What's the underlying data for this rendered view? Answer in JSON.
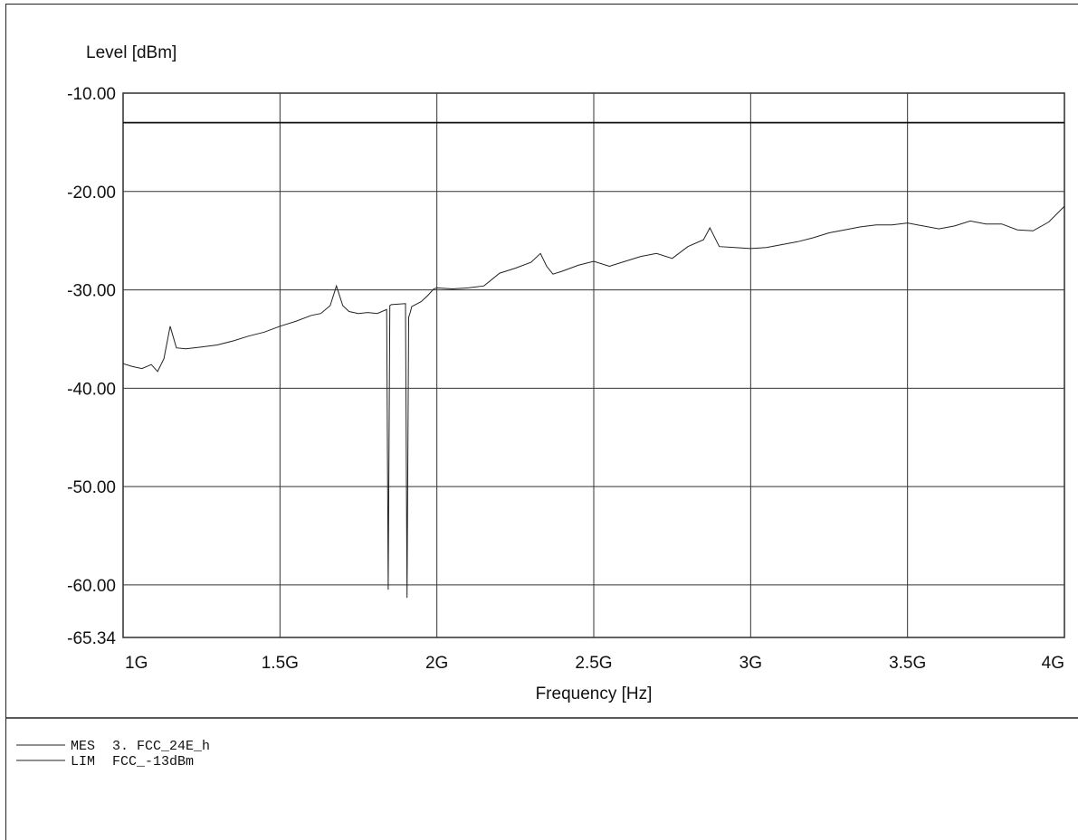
{
  "chart_data": {
    "type": "line",
    "ylabel": "Level [dBm]",
    "xlabel": "Frequency [Hz]",
    "xlim": [
      1000000000,
      4000000000
    ],
    "ylim": [
      -65.34,
      -10.0
    ],
    "xscale": "linear",
    "grid": true,
    "y_ticks": [
      {
        "value": -10.0,
        "label": "-10.00"
      },
      {
        "value": -20.0,
        "label": "-20.00"
      },
      {
        "value": -30.0,
        "label": "-30.00"
      },
      {
        "value": -40.0,
        "label": "-40.00"
      },
      {
        "value": -50.0,
        "label": "-50.00"
      },
      {
        "value": -60.0,
        "label": "-60.00"
      },
      {
        "value": -65.34,
        "label": "-65.34"
      }
    ],
    "x_ticks": [
      {
        "value": 1000000000,
        "label": "1G"
      },
      {
        "value": 1500000000,
        "label": "1.5G"
      },
      {
        "value": 2000000000,
        "label": "2G"
      },
      {
        "value": 2500000000,
        "label": "2.5G"
      },
      {
        "value": 3000000000,
        "label": "3G"
      },
      {
        "value": 3500000000,
        "label": "3.5G"
      },
      {
        "value": 4000000000,
        "label": "4G"
      }
    ],
    "series": [
      {
        "name": "MES  3. FCC_24E_h",
        "color": "#222222",
        "x": [
          1000000000,
          1030000000,
          1060000000,
          1090000000,
          1110000000,
          1130000000,
          1150000000,
          1170000000,
          1200000000,
          1250000000,
          1300000000,
          1350000000,
          1400000000,
          1450000000,
          1500000000,
          1550000000,
          1600000000,
          1630000000,
          1660000000,
          1680000000,
          1700000000,
          1720000000,
          1750000000,
          1780000000,
          1810000000,
          1840000000,
          1845000000,
          1850000000,
          1855000000,
          1900000000,
          1905000000,
          1910000000,
          1915000000,
          1920000000,
          1950000000,
          1970000000,
          1990000000,
          2000000000,
          2050000000,
          2100000000,
          2150000000,
          2200000000,
          2250000000,
          2300000000,
          2330000000,
          2350000000,
          2370000000,
          2400000000,
          2450000000,
          2500000000,
          2550000000,
          2600000000,
          2650000000,
          2700000000,
          2750000000,
          2800000000,
          2850000000,
          2870000000,
          2900000000,
          2950000000,
          3000000000,
          3050000000,
          3100000000,
          3150000000,
          3200000000,
          3250000000,
          3300000000,
          3350000000,
          3400000000,
          3450000000,
          3500000000,
          3550000000,
          3600000000,
          3650000000,
          3700000000,
          3750000000,
          3800000000,
          3850000000,
          3900000000,
          3950000000,
          4000000000
        ],
        "y": [
          -37.5,
          -37.8,
          -38.0,
          -37.6,
          -38.3,
          -37.0,
          -33.7,
          -35.9,
          -36.0,
          -35.8,
          -35.6,
          -35.2,
          -34.7,
          -34.3,
          -33.7,
          -33.2,
          -32.6,
          -32.4,
          -31.6,
          -29.6,
          -31.6,
          -32.2,
          -32.4,
          -32.3,
          -32.4,
          -32.0,
          -60.5,
          -31.6,
          -31.5,
          -31.4,
          -61.3,
          -32.8,
          -32.3,
          -31.7,
          -31.2,
          -30.6,
          -29.9,
          -29.8,
          -29.9,
          -29.8,
          -29.6,
          -28.3,
          -27.8,
          -27.2,
          -26.3,
          -27.6,
          -28.4,
          -28.1,
          -27.5,
          -27.1,
          -27.6,
          -27.1,
          -26.6,
          -26.3,
          -26.8,
          -25.6,
          -24.9,
          -23.7,
          -25.6,
          -25.7,
          -25.8,
          -25.7,
          -25.4,
          -25.1,
          -24.7,
          -24.2,
          -23.9,
          -23.6,
          -23.4,
          -23.4,
          -23.2,
          -23.5,
          -23.8,
          -23.5,
          -23.0,
          -23.3,
          -23.3,
          -23.9,
          -24.0,
          -23.1,
          -21.5
        ]
      },
      {
        "name": "LIM  FCC_-13dBm",
        "color": "#111111",
        "x": [
          1000000000,
          4000000000
        ],
        "y": [
          -13.0,
          -13.0
        ]
      }
    ],
    "legend": [
      {
        "key": "MES",
        "text": "3. FCC_24E_h"
      },
      {
        "key": "LIM",
        "text": "FCC_-13dBm"
      }
    ],
    "legend_position": "bottom"
  }
}
